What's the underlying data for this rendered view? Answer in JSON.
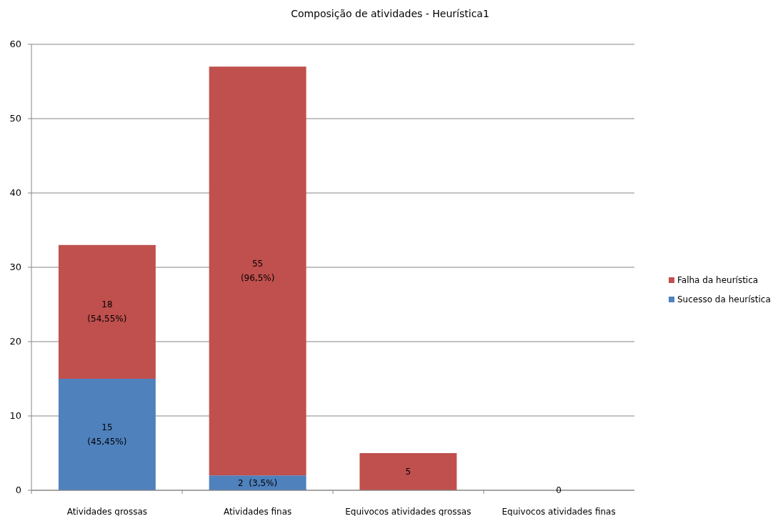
{
  "chart_data": {
    "type": "bar",
    "title": "Composição de atividades  - Heurística1",
    "categories": [
      "Atividades grossas",
      "Atividades finas",
      "Equivocos atividades grossas",
      "Equivocos atividades finas"
    ],
    "stacked": true,
    "series": [
      {
        "name": "Sucesso da heurística",
        "color": "#4f81bd",
        "values": [
          15,
          2,
          0,
          0
        ],
        "value_labels": [
          "15\n(45,45%)",
          "2  (3,5%)",
          null,
          null
        ]
      },
      {
        "name": "Falha da heurística",
        "color": "#c0504d",
        "values": [
          18,
          55,
          5,
          0
        ],
        "value_labels": [
          "18\n(54,55%)",
          "55\n(96,5%)",
          "5",
          "0"
        ]
      }
    ],
    "ylim": [
      0,
      60
    ],
    "yticks": [
      0,
      10,
      20,
      30,
      40,
      50,
      60
    ],
    "grid": "y",
    "legend": "right"
  }
}
